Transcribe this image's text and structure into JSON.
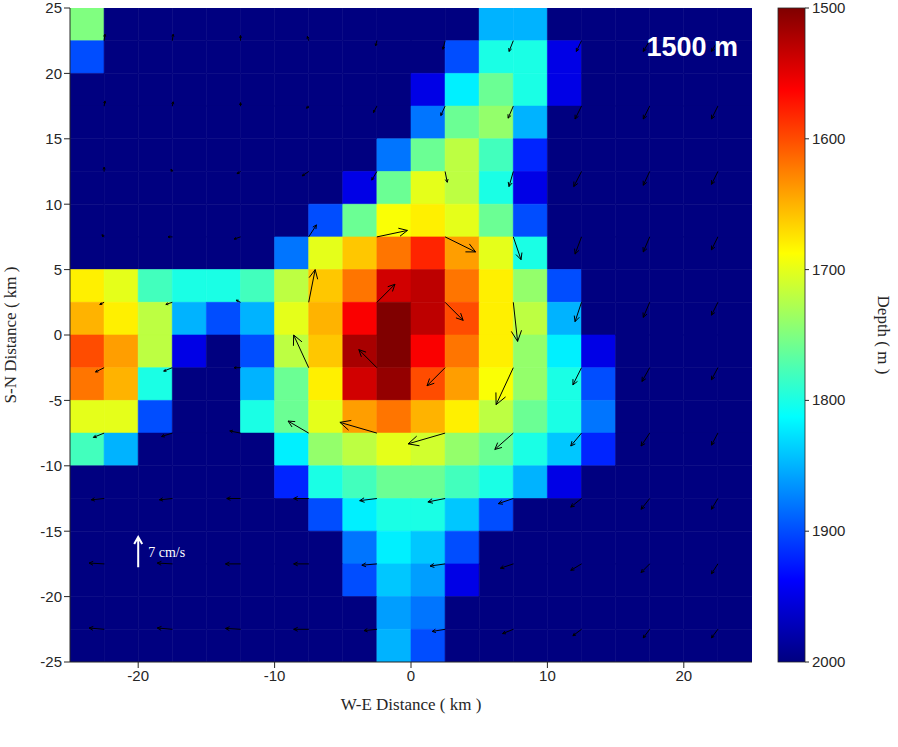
{
  "chart_data": {
    "type": "heatmap",
    "x_label": "W-E Distance ( km )",
    "y_label": "S-N Distance ( km )",
    "xlim": [
      -25,
      25
    ],
    "xticks": [
      -20,
      -10,
      0,
      10,
      20
    ],
    "ylim": [
      -25,
      25
    ],
    "yticks": [
      -25,
      -20,
      -15,
      -10,
      -5,
      0,
      5,
      10,
      15,
      20,
      25
    ],
    "grid": false,
    "annotations": [
      {
        "text": "1500 m"
      }
    ],
    "colorbar": {
      "label": "Depth ( m )",
      "range": [
        1500,
        2000
      ],
      "ticks": [
        1500,
        1600,
        1700,
        1800,
        1900,
        2000
      ]
    },
    "heatmap": {
      "x_edges": [
        -25,
        -22.5,
        -20,
        -17.5,
        -15,
        -12.5,
        -10,
        -7.5,
        -5,
        -2.5,
        0,
        2.5,
        5,
        7.5,
        10,
        12.5,
        15,
        17.5,
        20,
        22.5,
        25
      ],
      "y_edges": [
        25,
        22.5,
        20,
        17.5,
        15,
        12.5,
        10,
        7.5,
        5,
        2.5,
        0,
        -2.5,
        -5,
        -7.5,
        -10,
        -12.5,
        -15,
        -17.5,
        -20,
        -22.5,
        -25
      ],
      "values": [
        [
          1750,
          2000,
          2000,
          2000,
          2000,
          2000,
          2000,
          2000,
          2000,
          2000,
          2000,
          2000,
          1850,
          1850,
          2000,
          2000,
          2000,
          2000,
          2000,
          2000
        ],
        [
          1900,
          2000,
          2000,
          2000,
          2000,
          2000,
          2000,
          2000,
          2000,
          2000,
          2000,
          1900,
          1800,
          1800,
          1950,
          2000,
          2000,
          2000,
          2000,
          2000
        ],
        [
          2000,
          2000,
          2000,
          2000,
          2000,
          2000,
          2000,
          2000,
          2000,
          2000,
          1950,
          1820,
          1760,
          1800,
          1950,
          2000,
          2000,
          2000,
          2000,
          2000
        ],
        [
          2000,
          2000,
          2000,
          2000,
          2000,
          2000,
          2000,
          2000,
          2000,
          2000,
          1880,
          1760,
          1740,
          1850,
          2000,
          2000,
          2000,
          2000,
          2000,
          2000
        ],
        [
          2000,
          2000,
          2000,
          2000,
          2000,
          2000,
          2000,
          2000,
          2000,
          1880,
          1760,
          1720,
          1780,
          1920,
          2000,
          2000,
          2000,
          2000,
          2000,
          2000
        ],
        [
          2000,
          2000,
          2000,
          2000,
          2000,
          2000,
          2000,
          2000,
          1950,
          1760,
          1700,
          1720,
          1800,
          1950,
          2000,
          2000,
          2000,
          2000,
          2000,
          2000
        ],
        [
          2000,
          2000,
          2000,
          2000,
          2000,
          2000,
          2000,
          1900,
          1760,
          1690,
          1680,
          1700,
          1760,
          1900,
          2000,
          2000,
          2000,
          2000,
          2000,
          2000
        ],
        [
          2000,
          2000,
          2000,
          2000,
          2000,
          2000,
          1880,
          1700,
          1660,
          1620,
          1580,
          1640,
          1700,
          1800,
          2000,
          2000,
          2000,
          2000,
          2000,
          2000
        ],
        [
          1680,
          1700,
          1780,
          1800,
          1800,
          1780,
          1720,
          1660,
          1620,
          1540,
          1530,
          1620,
          1680,
          1740,
          1900,
          2000,
          2000,
          2000,
          2000,
          2000
        ],
        [
          1650,
          1680,
          1720,
          1850,
          1900,
          1850,
          1700,
          1650,
          1560,
          1500,
          1530,
          1600,
          1680,
          1720,
          1850,
          2000,
          2000,
          2000,
          2000,
          2000
        ],
        [
          1600,
          1640,
          1720,
          1950,
          2000,
          1900,
          1720,
          1660,
          1520,
          1500,
          1560,
          1620,
          1680,
          1740,
          1820,
          1950,
          2000,
          2000,
          2000,
          2000
        ],
        [
          1620,
          1650,
          1800,
          2000,
          2000,
          1850,
          1760,
          1680,
          1540,
          1510,
          1600,
          1640,
          1690,
          1740,
          1800,
          1900,
          2000,
          2000,
          2000,
          2000
        ],
        [
          1700,
          1700,
          1900,
          2000,
          2000,
          1800,
          1760,
          1700,
          1640,
          1620,
          1650,
          1680,
          1720,
          1760,
          1800,
          1880,
          2000,
          2000,
          2000,
          2000
        ],
        [
          1780,
          1850,
          2000,
          2000,
          2000,
          2000,
          1820,
          1740,
          1720,
          1700,
          1710,
          1740,
          1760,
          1800,
          1840,
          1920,
          2000,
          2000,
          2000,
          2000
        ],
        [
          2000,
          2000,
          2000,
          2000,
          2000,
          2000,
          1920,
          1800,
          1780,
          1760,
          1760,
          1780,
          1800,
          1850,
          1950,
          2000,
          2000,
          2000,
          2000,
          2000
        ],
        [
          2000,
          2000,
          2000,
          2000,
          2000,
          2000,
          2000,
          1900,
          1820,
          1800,
          1800,
          1840,
          1900,
          2000,
          2000,
          2000,
          2000,
          2000,
          2000,
          2000
        ],
        [
          2000,
          2000,
          2000,
          2000,
          2000,
          2000,
          2000,
          2000,
          1880,
          1820,
          1840,
          1900,
          2000,
          2000,
          2000,
          2000,
          2000,
          2000,
          2000,
          2000
        ],
        [
          2000,
          2000,
          2000,
          2000,
          2000,
          2000,
          2000,
          2000,
          1900,
          1840,
          1860,
          1950,
          2000,
          2000,
          2000,
          2000,
          2000,
          2000,
          2000,
          2000
        ],
        [
          2000,
          2000,
          2000,
          2000,
          2000,
          2000,
          2000,
          2000,
          2000,
          1860,
          1880,
          2000,
          2000,
          2000,
          2000,
          2000,
          2000,
          2000,
          2000,
          2000
        ],
        [
          2000,
          2000,
          2000,
          2000,
          2000,
          2000,
          2000,
          2000,
          2000,
          1850,
          1900,
          2000,
          2000,
          2000,
          2000,
          2000,
          2000,
          2000,
          2000,
          2000
        ]
      ]
    },
    "vectors": {
      "x": [
        -22.5,
        -17.5,
        -12.5,
        -7.5,
        -2.5,
        2.5,
        7.5,
        12.5,
        17.5,
        22.5
      ],
      "y": [
        22.5,
        17.5,
        12.5,
        7.5,
        2.5,
        -2.5,
        -7.5,
        -12.5,
        -17.5,
        -22.5
      ],
      "u": [
        [
          0.2,
          0.2,
          0,
          -0.3,
          -0.3,
          -0.5,
          -1,
          -1.2,
          -1.5,
          -1.5
        ],
        [
          0.2,
          0.2,
          0,
          -0.5,
          -0.8,
          -1,
          -1.2,
          -1.5,
          -1.5,
          -1.5
        ],
        [
          0,
          -0.3,
          -0.8,
          -1.5,
          -1.2,
          0.5,
          -1,
          -1.8,
          -1.5,
          -1.5
        ],
        [
          -0.5,
          -1,
          -1.5,
          1.8,
          7.1,
          7.1,
          1.8,
          -1.5,
          -1.5,
          -1.5
        ],
        [
          -1,
          -1.5,
          -1,
          1.5,
          4.2,
          4.2,
          1,
          -1.5,
          -1.5,
          -1.5
        ],
        [
          -2,
          -2,
          -1.5,
          -3.5,
          -4.2,
          -4.2,
          -4,
          -2,
          -1.8,
          -1.5
        ],
        [
          -2.5,
          -2.5,
          -2.5,
          -4.8,
          -8.6,
          -8.6,
          -4.3,
          -2.5,
          -2,
          -1.5
        ],
        [
          -3,
          -3,
          -3.2,
          -3.5,
          -4,
          -4,
          -3.5,
          -2.5,
          -2,
          -1.5
        ],
        [
          -3.5,
          -3.5,
          -3.5,
          -3.5,
          -3.5,
          -3.5,
          -3,
          -2.5,
          -2,
          -1.5
        ],
        [
          -3.5,
          -3.5,
          -3.5,
          -3.5,
          -3,
          -3,
          -2.5,
          -2,
          -1.5,
          -1.5
        ]
      ],
      "v": [
        [
          1.5,
          1.5,
          1.2,
          1,
          -1.2,
          -2,
          -2.5,
          -2.5,
          -2.5,
          -2.5
        ],
        [
          1.2,
          1,
          0.8,
          -0.5,
          -1.5,
          -2.2,
          -2.8,
          -3,
          -3,
          -3
        ],
        [
          1,
          0.5,
          -0.5,
          -1,
          -2,
          -2.5,
          -3.5,
          -3.5,
          -3.2,
          -3
        ],
        [
          0.5,
          0,
          -0.5,
          2.8,
          1.5,
          -3.5,
          -5.3,
          -4,
          -3.5,
          -3
        ],
        [
          -0.5,
          -0.5,
          0.5,
          7.6,
          4.2,
          -4.2,
          -9.1,
          -4.5,
          -3.5,
          -3
        ],
        [
          -1,
          -0.8,
          0,
          7.6,
          4.2,
          -4.2,
          -8.6,
          -4,
          -3.2,
          -2.8
        ],
        [
          -1,
          -0.8,
          0.5,
          2.8,
          2.5,
          -2.5,
          -3.8,
          -3,
          -3,
          -2.8
        ],
        [
          -0.3,
          -0.3,
          0,
          0,
          -0.5,
          -0.8,
          -1.2,
          -2,
          -2.5,
          -2.5
        ],
        [
          0.2,
          0.2,
          0,
          0,
          -0.3,
          -0.5,
          -1,
          -1.5,
          -2,
          -2.3
        ],
        [
          0.3,
          0.3,
          0.2,
          0,
          -0.3,
          -0.5,
          -1,
          -1.5,
          -2,
          -2
        ]
      ]
    },
    "reference_vector": {
      "value": 7,
      "label": "7 cm/s"
    }
  }
}
